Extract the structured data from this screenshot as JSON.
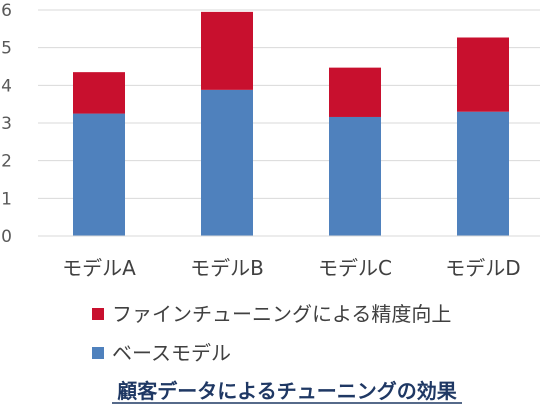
{
  "chart_data": {
    "type": "bar",
    "stacked": true,
    "categories": [
      "モデルA",
      "モデルB",
      "モデルC",
      "モデルD"
    ],
    "series": [
      {
        "name": "ベースモデル",
        "values": [
          3.25,
          3.88,
          3.16,
          3.3
        ],
        "color": "#4f81bd"
      },
      {
        "name": "ファインチューニングによる精度向上",
        "values": [
          1.1,
          2.07,
          1.31,
          1.97
        ],
        "color": "#c8102e"
      }
    ],
    "ylim": [
      0,
      6
    ],
    "yticks": [
      "0",
      "1",
      "2",
      "3",
      "4",
      "5",
      "6"
    ],
    "grid": true,
    "legend_position": "bottom",
    "title": "顧客データによるチューニングの効果"
  }
}
